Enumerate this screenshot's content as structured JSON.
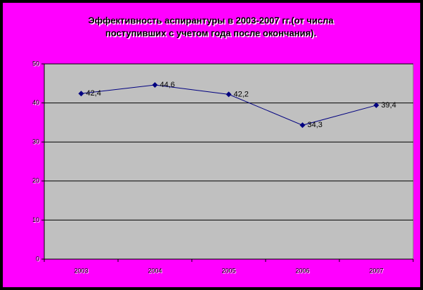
{
  "chart_data": {
    "type": "line",
    "title": [
      "Эффективность аспирантуры в 2003-2007 гг.(от числа",
      "поступивших с учетом года после окончания)."
    ],
    "categories": [
      "2003",
      "2004",
      "2005",
      "2006",
      "2007"
    ],
    "values": [
      42.4,
      44.6,
      42.2,
      34.3,
      39.4
    ],
    "value_labels": [
      "42,4",
      "44,6",
      "42,2",
      "34,3",
      "39,4"
    ],
    "color": "#000080",
    "ylim": [
      0,
      50
    ],
    "yticks": [
      0,
      10,
      20,
      30,
      40,
      50
    ],
    "grid": true
  }
}
